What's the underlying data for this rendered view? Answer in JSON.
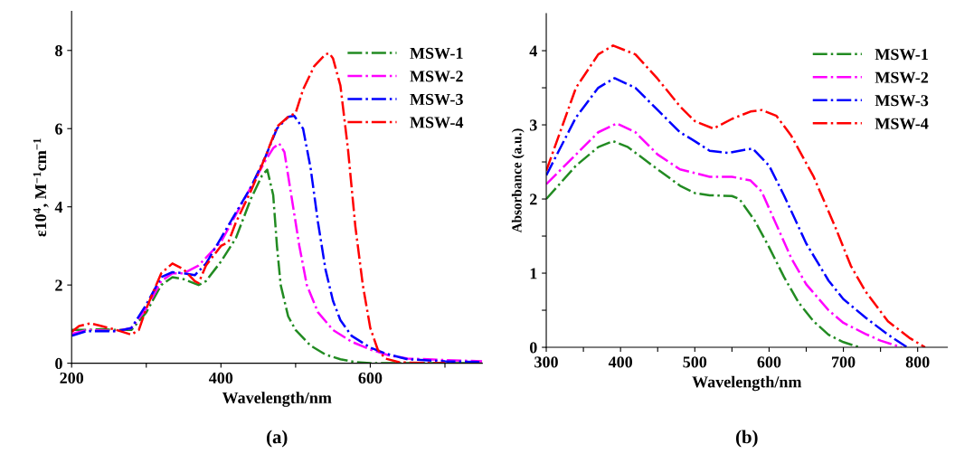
{
  "chart_data": [
    {
      "type": "line",
      "xlabel": "Wavelength/nm",
      "ylabel": "ε10$^{4}$, M$^{−1}$cm$^{−1}$",
      "annotations": [
        "(a)"
      ],
      "xlim": [
        200,
        750
      ],
      "xticks": [
        200,
        {
          "value": 300,
          "label": null
        },
        400,
        {
          "value": 500,
          "label": null
        },
        600,
        {
          "value": 700,
          "label": null
        }
      ],
      "ylim": [
        0,
        9
      ],
      "yticks": [
        0,
        2,
        4,
        6,
        8
      ],
      "grid": false,
      "legend": "top right",
      "line_style": "dashdot",
      "marker": "none",
      "series": [
        {
          "name": "MSW-1",
          "color": "#228b22",
          "x": [
            200,
            220,
            240,
            260,
            280,
            300,
            320,
            335,
            350,
            370,
            380,
            400,
            420,
            440,
            455,
            462,
            470,
            475,
            480,
            490,
            500,
            520,
            540,
            560,
            580,
            600,
            650,
            750
          ],
          "values": [
            0.85,
            0.85,
            0.87,
            0.85,
            0.85,
            1.3,
            2.0,
            2.2,
            2.15,
            2.0,
            2.1,
            2.6,
            3.2,
            4.2,
            4.8,
            4.95,
            4.3,
            3.0,
            2.0,
            1.2,
            0.85,
            0.45,
            0.22,
            0.1,
            0.03,
            0,
            0,
            0
          ]
        },
        {
          "name": "MSW-2",
          "color": "#ff00ff",
          "x": [
            200,
            220,
            260,
            280,
            300,
            320,
            335,
            350,
            370,
            400,
            420,
            440,
            460,
            470,
            478,
            485,
            495,
            505,
            515,
            530,
            550,
            575,
            600,
            625,
            650,
            700,
            750
          ],
          "values": [
            0.75,
            0.85,
            0.82,
            0.9,
            1.4,
            2.1,
            2.3,
            2.3,
            2.5,
            3.1,
            3.8,
            4.5,
            5.2,
            5.5,
            5.62,
            5.4,
            4.2,
            3.0,
            2.0,
            1.3,
            0.85,
            0.55,
            0.35,
            0.2,
            0.12,
            0.08,
            0.05
          ]
        },
        {
          "name": "MSW-3",
          "color": "#0000ff",
          "x": [
            200,
            220,
            260,
            280,
            300,
            320,
            335,
            350,
            365,
            380,
            400,
            420,
            440,
            460,
            475,
            490,
            498,
            510,
            520,
            530,
            540,
            550,
            560,
            575,
            600,
            620,
            650,
            700,
            750
          ],
          "values": [
            0.7,
            0.82,
            0.82,
            0.9,
            1.5,
            2.2,
            2.33,
            2.3,
            2.25,
            2.55,
            3.2,
            3.85,
            4.5,
            5.3,
            6.0,
            6.3,
            6.33,
            6.0,
            5.0,
            3.6,
            2.4,
            1.6,
            1.1,
            0.7,
            0.4,
            0.25,
            0.1,
            0.05,
            0.03
          ]
        },
        {
          "name": "MSW-4",
          "color": "#ff0000",
          "x": [
            200,
            210,
            225,
            240,
            260,
            280,
            290,
            300,
            320,
            335,
            350,
            365,
            370,
            380,
            400,
            410,
            420,
            440,
            460,
            475,
            490,
            500,
            510,
            525,
            540,
            545,
            550,
            560,
            570,
            580,
            590,
            600,
            610,
            620,
            640,
            700
          ],
          "values": [
            0.8,
            0.95,
            1.02,
            0.95,
            0.85,
            0.73,
            0.85,
            1.4,
            2.3,
            2.55,
            2.4,
            2.1,
            2.05,
            2.5,
            3.0,
            3.1,
            3.6,
            4.4,
            5.3,
            6.05,
            6.3,
            6.4,
            7.0,
            7.6,
            7.9,
            7.93,
            7.8,
            7.1,
            5.5,
            3.5,
            2.0,
            0.9,
            0.35,
            0.12,
            0.02,
            0
          ]
        }
      ]
    },
    {
      "type": "line",
      "xlabel": "Wavelength/nm",
      "ylabel": "Absorbance (a.u.)",
      "annotations": [
        "(b)"
      ],
      "xlim": [
        300,
        840
      ],
      "xticks": [
        300,
        {
          "value": 350,
          "label": null
        },
        400,
        {
          "value": 450,
          "label": null
        },
        500,
        {
          "value": 550,
          "label": null
        },
        600,
        {
          "value": 650,
          "label": null
        },
        700,
        {
          "value": 750,
          "label": null
        },
        800
      ],
      "ylim": [
        0,
        4.5
      ],
      "yticks": [
        0,
        {
          "value": 0.5,
          "label": null
        },
        1,
        {
          "value": 1.5,
          "label": null
        },
        2,
        {
          "value": 2.5,
          "label": null
        },
        3,
        {
          "value": 3.5,
          "label": null
        },
        4
      ],
      "grid": false,
      "legend": "top right",
      "line_style": "dashdot",
      "marker": "none",
      "series": [
        {
          "name": "MSW-1",
          "color": "#228b22",
          "x": [
            300,
            340,
            370,
            390,
            410,
            450,
            480,
            500,
            520,
            550,
            560,
            580,
            600,
            620,
            640,
            660,
            680,
            700,
            722
          ],
          "values": [
            2.0,
            2.45,
            2.7,
            2.78,
            2.7,
            2.4,
            2.18,
            2.08,
            2.05,
            2.04,
            2.0,
            1.72,
            1.35,
            0.95,
            0.6,
            0.35,
            0.17,
            0.07,
            0
          ]
        },
        {
          "name": "MSW-2",
          "color": "#ff00ff",
          "x": [
            300,
            340,
            370,
            395,
            420,
            450,
            480,
            500,
            520,
            550,
            575,
            590,
            610,
            630,
            650,
            680,
            700,
            730,
            750,
            778
          ],
          "values": [
            2.2,
            2.6,
            2.9,
            3.02,
            2.9,
            2.6,
            2.4,
            2.35,
            2.3,
            2.3,
            2.25,
            2.1,
            1.65,
            1.2,
            0.85,
            0.5,
            0.33,
            0.18,
            0.09,
            0
          ]
        },
        {
          "name": "MSW-3",
          "color": "#0000ff",
          "x": [
            300,
            340,
            370,
            392,
            420,
            450,
            480,
            500,
            520,
            545,
            565,
            578,
            600,
            620,
            650,
            680,
            700,
            730,
            760,
            786
          ],
          "values": [
            2.32,
            3.1,
            3.5,
            3.63,
            3.5,
            3.2,
            2.9,
            2.78,
            2.65,
            2.62,
            2.66,
            2.68,
            2.45,
            2.05,
            1.4,
            0.9,
            0.65,
            0.4,
            0.17,
            0
          ]
        },
        {
          "name": "MSW-4",
          "color": "#ff0000",
          "x": [
            300,
            340,
            370,
            390,
            420,
            450,
            480,
            500,
            525,
            550,
            575,
            590,
            610,
            630,
            660,
            690,
            710,
            730,
            760,
            790,
            810
          ],
          "values": [
            2.38,
            3.5,
            3.95,
            4.07,
            3.95,
            3.62,
            3.25,
            3.05,
            2.95,
            3.08,
            3.18,
            3.2,
            3.12,
            2.85,
            2.3,
            1.6,
            1.1,
            0.75,
            0.35,
            0.12,
            0
          ]
        }
      ]
    }
  ]
}
